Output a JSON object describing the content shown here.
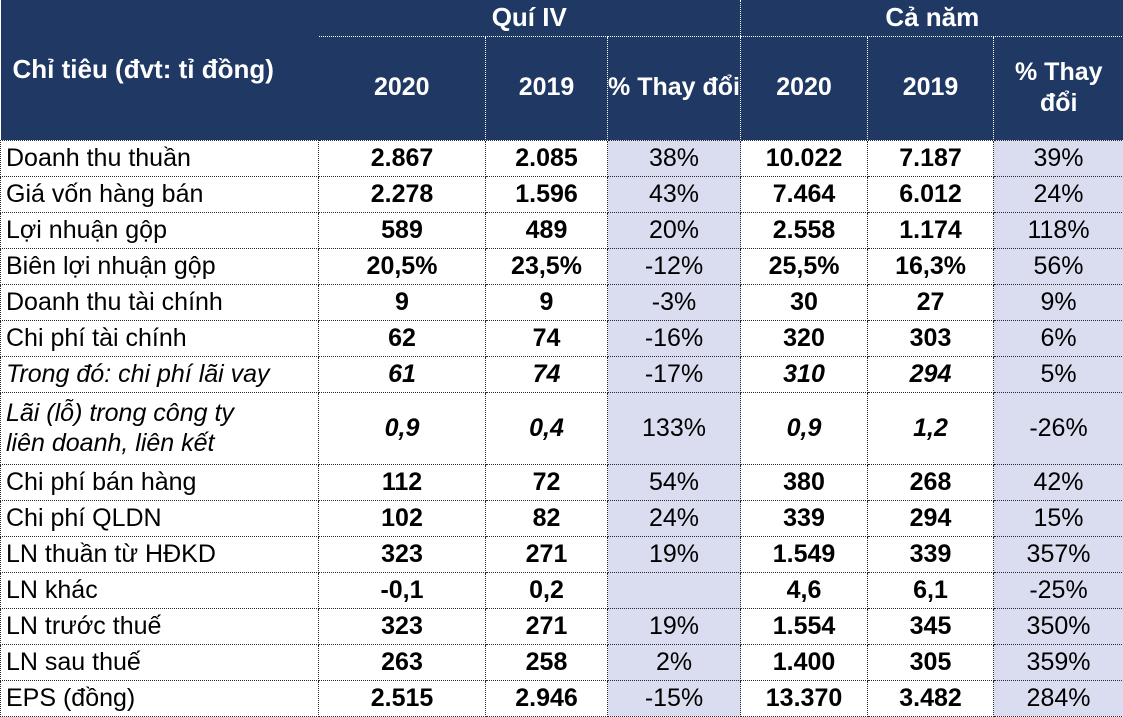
{
  "chart_data": {
    "type": "table",
    "header": {
      "col1": "Chỉ tiêu (đvt: tỉ đồng)",
      "groups": [
        "Quí IV",
        "Cả năm"
      ],
      "subcolumns": [
        "2020",
        "2019",
        "% Thay đổi",
        "2020",
        "2019",
        "% Thay đổi"
      ]
    },
    "rows": [
      {
        "label": "Doanh thu thuần",
        "italic": false,
        "tall": false,
        "values": [
          "2.867",
          "2.085",
          "38%",
          "10.022",
          "7.187",
          "39%"
        ]
      },
      {
        "label": "Giá vốn hàng bán",
        "italic": false,
        "tall": false,
        "values": [
          "2.278",
          "1.596",
          "43%",
          "7.464",
          "6.012",
          "24%"
        ]
      },
      {
        "label": "Lợi nhuận gộp",
        "italic": false,
        "tall": false,
        "values": [
          "589",
          "489",
          "20%",
          "2.558",
          "1.174",
          "118%"
        ]
      },
      {
        "label": "Biên lợi nhuận gộp",
        "italic": false,
        "tall": false,
        "values": [
          "20,5%",
          "23,5%",
          "-12%",
          "25,5%",
          "16,3%",
          "56%"
        ]
      },
      {
        "label": "Doanh thu tài chính",
        "italic": false,
        "tall": false,
        "values": [
          "9",
          "9",
          "-3%",
          "30",
          "27",
          "9%"
        ]
      },
      {
        "label": "Chi phí tài chính",
        "italic": false,
        "tall": false,
        "values": [
          "62",
          "74",
          "-16%",
          "320",
          "303",
          "6%"
        ]
      },
      {
        "label": "Trong đó: chi phí lãi vay",
        "italic": true,
        "tall": false,
        "values": [
          "61",
          "74",
          "-17%",
          "310",
          "294",
          "5%"
        ]
      },
      {
        "label": "Lãi (lỗ) trong công ty\nliên doanh, liên kết",
        "italic": true,
        "tall": true,
        "values": [
          "0,9",
          "0,4",
          "133%",
          "0,9",
          "1,2",
          "-26%"
        ]
      },
      {
        "label": "Chi phí bán hàng",
        "italic": false,
        "tall": false,
        "values": [
          "112",
          "72",
          "54%",
          "380",
          "268",
          "42%"
        ]
      },
      {
        "label": "Chi phí QLDN",
        "italic": false,
        "tall": false,
        "values": [
          "102",
          "82",
          "24%",
          "339",
          "294",
          "15%"
        ]
      },
      {
        "label": "LN thuần từ HĐKD",
        "italic": false,
        "tall": false,
        "values": [
          "323",
          "271",
          "19%",
          "1.549",
          "339",
          "357%"
        ]
      },
      {
        "label": "LN khác",
        "italic": false,
        "tall": false,
        "values": [
          "-0,1",
          "0,2",
          "",
          "4,6",
          "6,1",
          "-25%"
        ]
      },
      {
        "label": "LN trước thuế",
        "italic": false,
        "tall": false,
        "values": [
          "323",
          "271",
          "19%",
          "1.554",
          "345",
          "350%"
        ]
      },
      {
        "label": "LN sau thuế",
        "italic": false,
        "tall": false,
        "values": [
          "263",
          "258",
          "2%",
          "1.400",
          "305",
          "359%"
        ]
      },
      {
        "label": "EPS (đồng)",
        "italic": false,
        "tall": false,
        "values": [
          "2.515",
          "2.946",
          "-15%",
          "13.370",
          "3.482",
          "284%"
        ]
      }
    ]
  },
  "colors": {
    "header_bg": "#203864",
    "header_text": "#FFFFFF",
    "pct_col_bg": "#D9DDEF",
    "body_text": "#000000"
  }
}
